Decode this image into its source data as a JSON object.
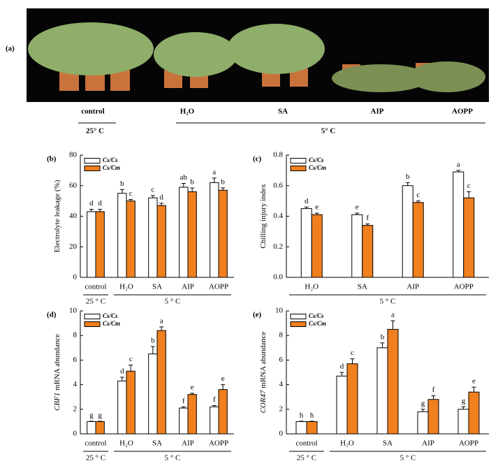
{
  "panel_a": {
    "label": "(a)",
    "categories": [
      "control",
      "H₂O",
      "SA",
      "AIP",
      "AOPP"
    ],
    "group_labels": [
      "25° C",
      "5° C"
    ]
  },
  "chart_data": [
    {
      "type": "bar",
      "label": "(b)",
      "ylabel": "Electrolyte leakage (%)",
      "categories": [
        "control",
        "H₂O",
        "SA",
        "AIP",
        "AOPP"
      ],
      "group_labels": [
        "25 ° C",
        "5 ° C"
      ],
      "series": [
        {
          "name": "Cs/Cs",
          "color": "#ffffff",
          "values": [
            43,
            55,
            52,
            59,
            62
          ],
          "errors": [
            1.5,
            2.5,
            1.5,
            2.5,
            3
          ],
          "letters": [
            "d",
            "b",
            "c",
            "ab",
            "a"
          ]
        },
        {
          "name": "Cs/Cm",
          "color": "#f07f1e",
          "values": [
            43,
            50,
            47,
            56,
            57
          ],
          "errors": [
            1.5,
            1,
            1.5,
            2.5,
            1.5
          ],
          "letters": [
            "d",
            "c",
            "d",
            "b",
            "b"
          ]
        }
      ],
      "ylim": [
        0,
        80
      ],
      "yticks": [
        0,
        20,
        40,
        60,
        80
      ]
    },
    {
      "type": "bar",
      "label": "(c)",
      "ylabel": "Chilling injury index",
      "categories": [
        "H₂O",
        "SA",
        "AIP",
        "AOPP"
      ],
      "group_labels": [
        "5 ° C"
      ],
      "series": [
        {
          "name": "Cs/Cs",
          "color": "#ffffff",
          "values": [
            0.45,
            0.41,
            0.6,
            0.69
          ],
          "errors": [
            0.01,
            0.01,
            0.02,
            0.01
          ],
          "letters": [
            "d",
            "e",
            "b",
            "a"
          ]
        },
        {
          "name": "Cs/Cm",
          "color": "#f07f1e",
          "values": [
            0.41,
            0.34,
            0.49,
            0.52
          ],
          "errors": [
            0.01,
            0.01,
            0.01,
            0.04
          ],
          "letters": [
            "e",
            "f",
            "c",
            "c"
          ]
        }
      ],
      "ylim": [
        0,
        0.8
      ],
      "yticks": [
        {
          "value": 0,
          "label": "0.0"
        },
        0.2,
        0.4,
        0.6,
        0.8
      ]
    },
    {
      "type": "bar",
      "label": "(d)",
      "ylabel_gene": "CBF1",
      "ylabel": "mRNA abundance",
      "categories": [
        "control",
        "H₂O",
        "SA",
        "AIP",
        "AOPP"
      ],
      "group_labels": [
        "25 ° C",
        "5 ° C"
      ],
      "series": [
        {
          "name": "Cs/Cs",
          "color": "#ffffff",
          "values": [
            1,
            4.3,
            6.5,
            2.1,
            2.2
          ],
          "errors": [
            0.03,
            0.3,
            0.6,
            0.1,
            0.1
          ],
          "letters": [
            "g",
            "d",
            "b",
            "f",
            "f"
          ]
        },
        {
          "name": "Cs/Cm",
          "color": "#f07f1e",
          "values": [
            1,
            5.1,
            8.4,
            3.2,
            3.6
          ],
          "errors": [
            0.03,
            0.5,
            0.3,
            0.1,
            0.4
          ],
          "letters": [
            "g",
            "c",
            "a",
            "e",
            "e"
          ]
        }
      ],
      "ylim": [
        0,
        10
      ],
      "yticks": [
        0,
        2,
        4,
        6,
        8,
        10
      ]
    },
    {
      "type": "bar",
      "label": "(e)",
      "ylabel_gene": "COR47",
      "ylabel": "mRNA abundance",
      "categories": [
        "control",
        "H₂O",
        "SA",
        "AIP",
        "AOPP"
      ],
      "group_labels": [
        "25 ° C",
        "5 ° C"
      ],
      "series": [
        {
          "name": "Cs/Cs",
          "color": "#ffffff",
          "values": [
            1,
            4.7,
            7.0,
            1.8,
            2.0
          ],
          "errors": [
            0.03,
            0.3,
            0.4,
            0.2,
            0.2
          ],
          "letters": [
            "h",
            "d",
            "b",
            "g",
            "g"
          ]
        },
        {
          "name": "Cs/Cm",
          "color": "#f07f1e",
          "values": [
            1,
            5.7,
            8.5,
            2.8,
            3.4
          ],
          "errors": [
            0.03,
            0.4,
            0.7,
            0.3,
            0.4
          ],
          "letters": [
            "h",
            "c",
            "a",
            "f",
            "e"
          ]
        }
      ],
      "ylim": [
        0,
        10
      ],
      "yticks": [
        0,
        2,
        4,
        6,
        8,
        10
      ]
    }
  ]
}
